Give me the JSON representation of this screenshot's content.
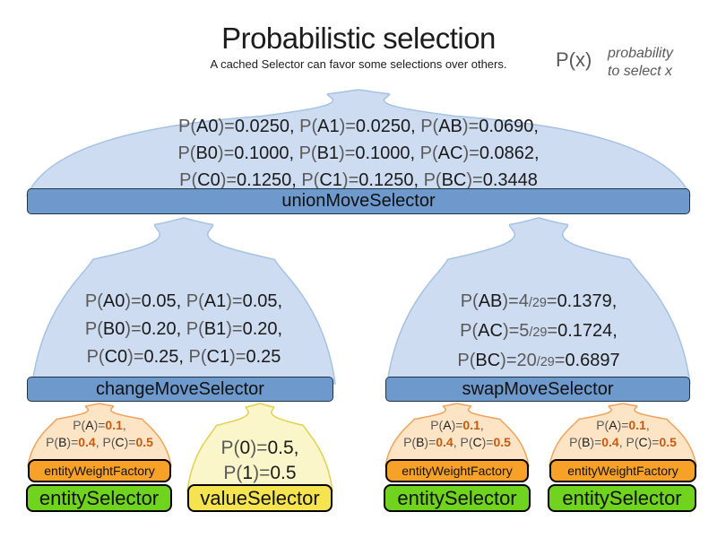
{
  "header": {
    "title": "Probabilistic selection",
    "subtitle": "A cached Selector can favor some selections over others.",
    "legend": {
      "symbol": "P(x)",
      "line1": "probability",
      "line2": "to select x"
    }
  },
  "colors": {
    "bar_blue": "#6e99cc",
    "dome_blue": "#cddcf0",
    "bar_orange": "#f8a128",
    "dome_orange": "#fce4c4",
    "bar_green": "#70d41f",
    "bar_yellow": "#f5e44f",
    "dome_yellow": "#fbf6c9",
    "muted_text": "#595959",
    "emphasis_text": "#c55a11"
  },
  "union_selector": {
    "label": "unionMoveSelector",
    "prob_lines": [
      [
        {
          "t": "P(",
          "s": "muted"
        },
        {
          "t": "A0"
        },
        {
          "t": ")=",
          "s": "muted"
        },
        {
          "t": "0.0250, "
        },
        {
          "t": "P(",
          "s": "muted"
        },
        {
          "t": "A1"
        },
        {
          "t": ")=",
          "s": "muted"
        },
        {
          "t": "0.0250, "
        },
        {
          "t": "P(",
          "s": "muted"
        },
        {
          "t": "AB"
        },
        {
          "t": ")=",
          "s": "muted"
        },
        {
          "t": "0.0690,"
        }
      ],
      [
        {
          "t": "P(",
          "s": "muted"
        },
        {
          "t": "B0"
        },
        {
          "t": ")=",
          "s": "muted"
        },
        {
          "t": "0.1000, "
        },
        {
          "t": "P(",
          "s": "muted"
        },
        {
          "t": "B1"
        },
        {
          "t": ")=",
          "s": "muted"
        },
        {
          "t": "0.1000, "
        },
        {
          "t": "P(",
          "s": "muted"
        },
        {
          "t": "AC"
        },
        {
          "t": ")=",
          "s": "muted"
        },
        {
          "t": "0.0862,"
        }
      ],
      [
        {
          "t": "P(",
          "s": "muted"
        },
        {
          "t": "C0"
        },
        {
          "t": ")=",
          "s": "muted"
        },
        {
          "t": "0.1250, "
        },
        {
          "t": "P(",
          "s": "muted"
        },
        {
          "t": "C1"
        },
        {
          "t": ")=",
          "s": "muted"
        },
        {
          "t": "0.1250, "
        },
        {
          "t": "P(",
          "s": "muted"
        },
        {
          "t": "BC"
        },
        {
          "t": ")=",
          "s": "muted"
        },
        {
          "t": "0.3448"
        }
      ]
    ]
  },
  "change_selector": {
    "label": "changeMoveSelector",
    "prob_lines": [
      [
        {
          "t": "P(",
          "s": "muted"
        },
        {
          "t": "A0"
        },
        {
          "t": ")=",
          "s": "muted"
        },
        {
          "t": "0.05, "
        },
        {
          "t": "P(",
          "s": "muted"
        },
        {
          "t": "A1"
        },
        {
          "t": ")=",
          "s": "muted"
        },
        {
          "t": "0.05,"
        }
      ],
      [
        {
          "t": "P(",
          "s": "muted"
        },
        {
          "t": "B0"
        },
        {
          "t": ")=",
          "s": "muted"
        },
        {
          "t": "0.20, "
        },
        {
          "t": "P(",
          "s": "muted"
        },
        {
          "t": "B1"
        },
        {
          "t": ")=",
          "s": "muted"
        },
        {
          "t": "0.20,"
        }
      ],
      [
        {
          "t": "P(",
          "s": "muted"
        },
        {
          "t": "C0"
        },
        {
          "t": ")=",
          "s": "muted"
        },
        {
          "t": "0.25, "
        },
        {
          "t": "P(",
          "s": "muted"
        },
        {
          "t": "C1"
        },
        {
          "t": ")=",
          "s": "muted"
        },
        {
          "t": "0.25"
        }
      ]
    ]
  },
  "swap_selector": {
    "label": "swapMoveSelector",
    "prob_lines": [
      [
        {
          "t": "P(",
          "s": "muted"
        },
        {
          "t": "AB"
        },
        {
          "t": ")=",
          "s": "muted"
        },
        {
          "t": "4",
          "s": "muted"
        },
        {
          "t": "/29",
          "s": "frac"
        },
        {
          "t": "=",
          "s": "muted"
        },
        {
          "t": "0.1379,"
        }
      ],
      [
        {
          "t": "P(",
          "s": "muted"
        },
        {
          "t": "AC"
        },
        {
          "t": ")=",
          "s": "muted"
        },
        {
          "t": "5",
          "s": "muted"
        },
        {
          "t": "/29",
          "s": "frac"
        },
        {
          "t": "=",
          "s": "muted"
        },
        {
          "t": "0.1724,"
        }
      ],
      [
        {
          "t": "P(",
          "s": "muted"
        },
        {
          "t": "BC"
        },
        {
          "t": ")=",
          "s": "muted"
        },
        {
          "t": "20",
          "s": "muted"
        },
        {
          "t": "/29",
          "s": "frac"
        },
        {
          "t": "=",
          "s": "muted"
        },
        {
          "t": "0.6897"
        }
      ]
    ]
  },
  "change_children": {
    "entity_group": {
      "weight_label": "entityWeightFactory",
      "selector_label": "entitySelector",
      "prob_lines": [
        [
          {
            "t": "P(",
            "s": "muted"
          },
          {
            "t": "A"
          },
          {
            "t": ")=",
            "s": "muted"
          },
          {
            "t": "0.1",
            "s": "em"
          },
          {
            "t": ",",
            "s": "muted"
          }
        ],
        [
          {
            "t": "P(",
            "s": "muted"
          },
          {
            "t": "B"
          },
          {
            "t": ")=",
            "s": "muted"
          },
          {
            "t": "0.4",
            "s": "em"
          },
          {
            "t": ", ",
            "s": "muted"
          },
          {
            "t": "P(",
            "s": "muted"
          },
          {
            "t": "C"
          },
          {
            "t": ")=",
            "s": "muted"
          },
          {
            "t": "0.5",
            "s": "em"
          }
        ]
      ]
    },
    "value_group": {
      "selector_label": "valueSelector",
      "prob_lines": [
        [
          {
            "t": "P(",
            "s": "muted"
          },
          {
            "t": "0"
          },
          {
            "t": ")=",
            "s": "muted"
          },
          {
            "t": "0.5,"
          }
        ],
        [
          {
            "t": "P(",
            "s": "muted"
          },
          {
            "t": "1"
          },
          {
            "t": ")=",
            "s": "muted"
          },
          {
            "t": "0.5"
          }
        ]
      ]
    }
  },
  "swap_children": {
    "entity_group_1": {
      "weight_label": "entityWeightFactory",
      "selector_label": "entitySelector",
      "prob_lines": [
        [
          {
            "t": "P(",
            "s": "muted"
          },
          {
            "t": "A"
          },
          {
            "t": ")=",
            "s": "muted"
          },
          {
            "t": "0.1",
            "s": "em"
          },
          {
            "t": ",",
            "s": "muted"
          }
        ],
        [
          {
            "t": "P(",
            "s": "muted"
          },
          {
            "t": "B"
          },
          {
            "t": ")=",
            "s": "muted"
          },
          {
            "t": "0.4",
            "s": "em"
          },
          {
            "t": ", ",
            "s": "muted"
          },
          {
            "t": "P(",
            "s": "muted"
          },
          {
            "t": "C"
          },
          {
            "t": ")=",
            "s": "muted"
          },
          {
            "t": "0.5",
            "s": "em"
          }
        ]
      ]
    },
    "entity_group_2": {
      "weight_label": "entityWeightFactory",
      "selector_label": "entitySelector",
      "prob_lines": [
        [
          {
            "t": "P(",
            "s": "muted"
          },
          {
            "t": "A"
          },
          {
            "t": ")=",
            "s": "muted"
          },
          {
            "t": "0.1",
            "s": "em"
          },
          {
            "t": ",",
            "s": "muted"
          }
        ],
        [
          {
            "t": "P(",
            "s": "muted"
          },
          {
            "t": "B"
          },
          {
            "t": ")=",
            "s": "muted"
          },
          {
            "t": "0.4",
            "s": "em"
          },
          {
            "t": ", ",
            "s": "muted"
          },
          {
            "t": "P(",
            "s": "muted"
          },
          {
            "t": "C"
          },
          {
            "t": ")=",
            "s": "muted"
          },
          {
            "t": "0.5",
            "s": "em"
          }
        ]
      ]
    }
  }
}
